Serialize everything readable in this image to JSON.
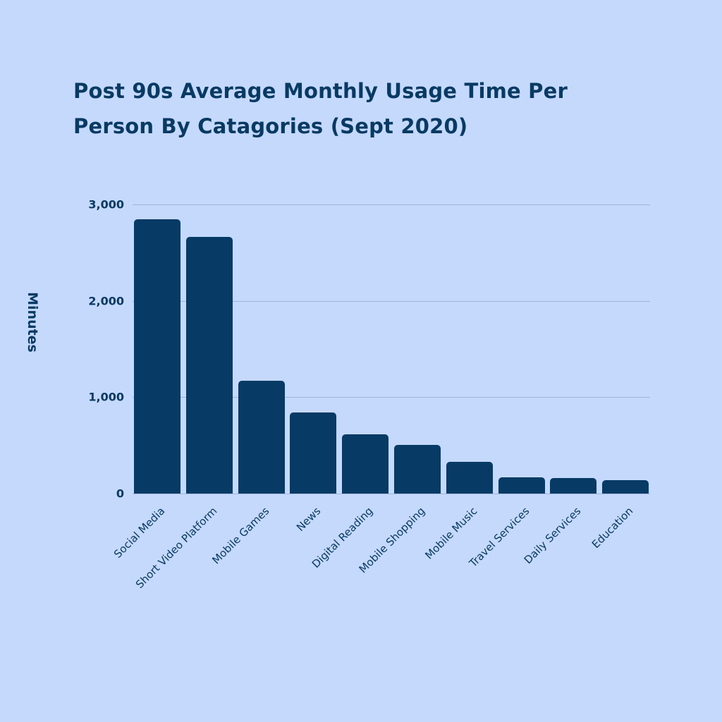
{
  "chart_data": {
    "type": "bar",
    "title": "Post 90s Average Monthly Usage Time Per Person By Catagories (Sept 2020)",
    "xlabel": "",
    "ylabel": "Minutes",
    "ylim": [
      0,
      3000
    ],
    "yticks": [
      "0",
      "1,000",
      "2,000",
      "3,000"
    ],
    "grid": true,
    "legend": null,
    "categories": [
      "Social Media",
      "Short Video Platform",
      "Mobile Games",
      "News",
      "Digital Reading",
      "Mobile Shopping",
      "Mobile Music",
      "Travel Services",
      "Daily Services",
      "Education"
    ],
    "values": [
      2850,
      2660,
      1170,
      840,
      615,
      505,
      330,
      168,
      160,
      140
    ],
    "colors": {
      "bar": "#073a65",
      "background": "#c5d9fd",
      "text": "#083a63",
      "grid": "#9fb5d8"
    }
  }
}
